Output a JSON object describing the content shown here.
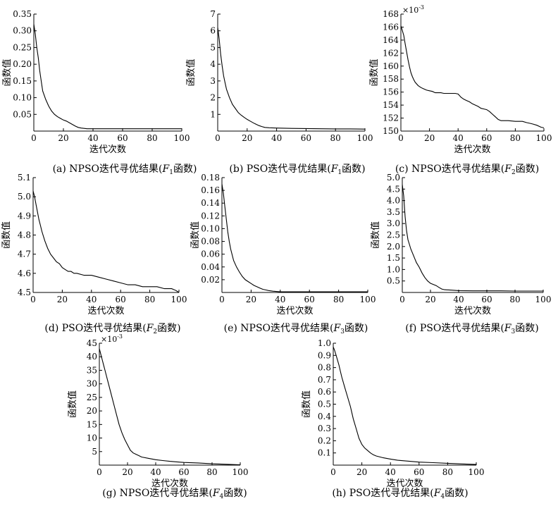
{
  "chart_data": [
    {
      "id": "a",
      "type": "line",
      "caption": {
        "pre": "(a) NPSO迭代寻优结果(",
        "F": "F",
        "sub": "1",
        "post": "函数)"
      },
      "xlabel": "迭代次数",
      "ylabel": "函数值",
      "exponent": "",
      "xlim": [
        0,
        100
      ],
      "ylim": [
        0,
        0.35
      ],
      "xticks": [
        "0",
        "20",
        "40",
        "60",
        "80",
        "100"
      ],
      "yticks": [
        {
          "v": 0.05,
          "l": "0.05"
        },
        {
          "v": 0.1,
          "l": "0.10"
        },
        {
          "v": 0.15,
          "l": "0.15"
        },
        {
          "v": 0.2,
          "l": "0.20"
        },
        {
          "v": 0.25,
          "l": "0.25"
        },
        {
          "v": 0.3,
          "l": "0.30"
        },
        {
          "v": 0.35,
          "l": "0.35"
        }
      ],
      "x": [
        0,
        1,
        2,
        3,
        4,
        5,
        6,
        8,
        10,
        12,
        14,
        16,
        18,
        20,
        22,
        24,
        26,
        28,
        30,
        32,
        34,
        36,
        40,
        50,
        60,
        70,
        80,
        90,
        100
      ],
      "y": [
        0.32,
        0.29,
        0.25,
        0.22,
        0.18,
        0.15,
        0.12,
        0.095,
        0.075,
        0.06,
        0.05,
        0.043,
        0.038,
        0.033,
        0.03,
        0.025,
        0.02,
        0.015,
        0.011,
        0.009,
        0.008,
        0.007,
        0.007,
        0.007,
        0.007,
        0.007,
        0.007,
        0.007,
        0.007
      ]
    },
    {
      "id": "b",
      "type": "line",
      "caption": {
        "pre": "(b) PSO迭代寻优结果(",
        "F": "F",
        "sub": "1",
        "post": "函数)"
      },
      "xlabel": "",
      "ylabel": "函数值",
      "exponent": "",
      "xlim": [
        0,
        100
      ],
      "ylim": [
        0,
        7
      ],
      "xticks": [
        "0",
        "20",
        "40",
        "60",
        "80",
        "100"
      ],
      "yticks": [
        {
          "v": 1,
          "l": "1"
        },
        {
          "v": 2,
          "l": "2"
        },
        {
          "v": 3,
          "l": "3"
        },
        {
          "v": 4,
          "l": "4"
        },
        {
          "v": 5,
          "l": "5"
        },
        {
          "v": 6,
          "l": "6"
        },
        {
          "v": 7,
          "l": "7"
        }
      ],
      "x": [
        0,
        1,
        2,
        3,
        4,
        5,
        6,
        8,
        10,
        12,
        14,
        16,
        18,
        20,
        22,
        25,
        28,
        30,
        32,
        35,
        40,
        50,
        60,
        70,
        80,
        90,
        100
      ],
      "y": [
        6.2,
        5.5,
        4.6,
        3.9,
        3.3,
        2.9,
        2.5,
        2.0,
        1.6,
        1.35,
        1.1,
        0.95,
        0.82,
        0.7,
        0.6,
        0.45,
        0.33,
        0.27,
        0.22,
        0.2,
        0.18,
        0.16,
        0.15,
        0.14,
        0.13,
        0.13,
        0.12
      ]
    },
    {
      "id": "c",
      "type": "line",
      "caption": {
        "pre": "(c) NPSO迭代寻优结果(",
        "F": "F",
        "sub": "2",
        "post": "函数)"
      },
      "xlabel": "迭代次数",
      "ylabel": "函数值",
      "exponent": "-3",
      "xlim": [
        0,
        100
      ],
      "ylim": [
        150,
        168
      ],
      "xticks": [
        "0",
        "20",
        "40",
        "60",
        "80",
        "100"
      ],
      "yticks": [
        {
          "v": 150,
          "l": "150"
        },
        {
          "v": 152,
          "l": "152"
        },
        {
          "v": 154,
          "l": "154"
        },
        {
          "v": 156,
          "l": "156"
        },
        {
          "v": 158,
          "l": "158"
        },
        {
          "v": 160,
          "l": "160"
        },
        {
          "v": 162,
          "l": "162"
        },
        {
          "v": 164,
          "l": "164"
        },
        {
          "v": 166,
          "l": "166"
        },
        {
          "v": 168,
          "l": "168"
        }
      ],
      "x": [
        0,
        1,
        2,
        3,
        4,
        5,
        6,
        7,
        8,
        9,
        10,
        12,
        14,
        16,
        18,
        20,
        22,
        24,
        26,
        28,
        30,
        35,
        38,
        40,
        42,
        44,
        46,
        48,
        50,
        52,
        54,
        56,
        58,
        60,
        62,
        64,
        66,
        68,
        70,
        75,
        80,
        85,
        88,
        90,
        92,
        95,
        98,
        100
      ],
      "y": [
        166.2,
        165.5,
        164.7,
        163.4,
        162.2,
        161.0,
        159.9,
        159.0,
        158.4,
        157.9,
        157.5,
        157.0,
        156.7,
        156.5,
        156.3,
        156.2,
        156.1,
        155.9,
        155.9,
        155.9,
        155.8,
        155.8,
        155.8,
        155.7,
        155.2,
        154.9,
        154.7,
        154.5,
        154.2,
        154.0,
        153.8,
        153.5,
        153.4,
        153.3,
        153.0,
        152.6,
        152.2,
        151.8,
        151.6,
        151.6,
        151.5,
        151.5,
        151.3,
        151.2,
        151.1,
        150.9,
        150.6,
        150.5
      ]
    },
    {
      "id": "d",
      "type": "line",
      "caption": {
        "pre": "(d) PSO迭代寻优结果(",
        "F": "F",
        "sub": "2",
        "post": "函数)"
      },
      "xlabel": "迭代次数",
      "ylabel": "函数值",
      "exponent": "",
      "xlim": [
        0,
        100
      ],
      "ylim": [
        4.5,
        5.1
      ],
      "xticks": [
        "0",
        "20",
        "40",
        "60",
        "80",
        "100"
      ],
      "yticks": [
        {
          "v": 4.5,
          "l": "4.5"
        },
        {
          "v": 4.6,
          "l": "4.6"
        },
        {
          "v": 4.7,
          "l": "4.7"
        },
        {
          "v": 4.8,
          "l": "4.8"
        },
        {
          "v": 4.9,
          "l": "4.9"
        },
        {
          "v": 5.0,
          "l": "5.0"
        },
        {
          "v": 5.1,
          "l": "5.1"
        }
      ],
      "x": [
        0,
        1,
        2,
        3,
        4,
        5,
        6,
        8,
        10,
        12,
        14,
        16,
        18,
        20,
        22,
        24,
        26,
        28,
        30,
        35,
        40,
        45,
        50,
        55,
        60,
        65,
        70,
        75,
        80,
        85,
        90,
        95,
        98,
        100
      ],
      "y": [
        5.03,
        5.0,
        4.96,
        4.92,
        4.88,
        4.85,
        4.82,
        4.77,
        4.73,
        4.7,
        4.68,
        4.66,
        4.65,
        4.63,
        4.62,
        4.61,
        4.61,
        4.6,
        4.6,
        4.59,
        4.59,
        4.58,
        4.57,
        4.56,
        4.55,
        4.54,
        4.54,
        4.53,
        4.53,
        4.53,
        4.52,
        4.52,
        4.51,
        4.5
      ]
    },
    {
      "id": "e",
      "type": "line",
      "caption": {
        "pre": "(e) NPSO迭代寻优结果(",
        "F": "F",
        "sub": "3",
        "post": "函数)"
      },
      "xlabel": "迭代次数",
      "ylabel": "函数值",
      "exponent": "",
      "xlim": [
        0,
        100
      ],
      "ylim": [
        0,
        0.18
      ],
      "xticks": [
        "0",
        "20",
        "40",
        "60",
        "80",
        "100"
      ],
      "yticks": [
        {
          "v": 0.02,
          "l": "0.02"
        },
        {
          "v": 0.04,
          "l": "0.04"
        },
        {
          "v": 0.06,
          "l": "0.06"
        },
        {
          "v": 0.08,
          "l": "0.08"
        },
        {
          "v": 0.1,
          "l": "0.10"
        },
        {
          "v": 0.12,
          "l": "0.12"
        },
        {
          "v": 0.14,
          "l": "0.14"
        },
        {
          "v": 0.16,
          "l": "0.16"
        },
        {
          "v": 0.18,
          "l": "0.18"
        }
      ],
      "x": [
        0,
        1,
        2,
        3,
        4,
        5,
        6,
        8,
        10,
        12,
        14,
        16,
        18,
        20,
        22,
        24,
        26,
        28,
        30,
        32,
        35,
        40,
        50,
        60,
        70,
        80,
        90,
        100
      ],
      "y": [
        0.17,
        0.155,
        0.135,
        0.115,
        0.095,
        0.08,
        0.068,
        0.05,
        0.04,
        0.032,
        0.025,
        0.02,
        0.017,
        0.014,
        0.011,
        0.009,
        0.007,
        0.005,
        0.004,
        0.003,
        0.002,
        0.001,
        0.001,
        0.001,
        0.001,
        0.001,
        0.001,
        0.001
      ]
    },
    {
      "id": "f",
      "type": "line",
      "caption": {
        "pre": "(f) PSO迭代寻优结果(",
        "F": "F",
        "sub": "3",
        "post": "函数)"
      },
      "xlabel": "迭代次数",
      "ylabel": "函数值",
      "exponent": "",
      "xlim": [
        0,
        100
      ],
      "ylim": [
        0,
        5.0
      ],
      "xticks": [
        "0",
        "20",
        "40",
        "60",
        "80",
        "100"
      ],
      "yticks": [
        {
          "v": 0.5,
          "l": "0.5"
        },
        {
          "v": 1.0,
          "l": "1.0"
        },
        {
          "v": 1.5,
          "l": "1.5"
        },
        {
          "v": 2.0,
          "l": "2.0"
        },
        {
          "v": 2.5,
          "l": "2.5"
        },
        {
          "v": 3.0,
          "l": "3.0"
        },
        {
          "v": 3.5,
          "l": "3.5"
        },
        {
          "v": 4.0,
          "l": "4.0"
        },
        {
          "v": 4.5,
          "l": "4.5"
        },
        {
          "v": 5.0,
          "l": "5.0"
        }
      ],
      "x": [
        0,
        1,
        2,
        3,
        4,
        5,
        6,
        8,
        10,
        12,
        14,
        16,
        18,
        20,
        22,
        24,
        26,
        28,
        30,
        35,
        40,
        50,
        60,
        70,
        80,
        90,
        100
      ],
      "y": [
        4.7,
        4.2,
        3.3,
        2.7,
        2.3,
        2.1,
        1.9,
        1.6,
        1.3,
        1.1,
        0.85,
        0.65,
        0.5,
        0.4,
        0.35,
        0.3,
        0.22,
        0.15,
        0.12,
        0.1,
        0.08,
        0.07,
        0.07,
        0.07,
        0.06,
        0.06,
        0.06
      ]
    },
    {
      "id": "g",
      "type": "line",
      "caption": {
        "pre": "(g) NPSO迭代寻优结果(",
        "F": "F",
        "sub": "4",
        "post": "函数)"
      },
      "xlabel": "迭代次数",
      "ylabel": "函数值",
      "exponent": "-3",
      "xlim": [
        0,
        100
      ],
      "ylim": [
        0,
        45
      ],
      "xticks": [
        "0",
        "20",
        "40",
        "60",
        "80",
        "100"
      ],
      "yticks": [
        {
          "v": 5,
          "l": "5"
        },
        {
          "v": 10,
          "l": "10"
        },
        {
          "v": 15,
          "l": "15"
        },
        {
          "v": 20,
          "l": "20"
        },
        {
          "v": 25,
          "l": "25"
        },
        {
          "v": 30,
          "l": "30"
        },
        {
          "v": 35,
          "l": "35"
        },
        {
          "v": 40,
          "l": "40"
        },
        {
          "v": 45,
          "l": "45"
        }
      ],
      "x": [
        0,
        1,
        2,
        3,
        4,
        5,
        6,
        8,
        10,
        12,
        14,
        16,
        18,
        20,
        22,
        24,
        26,
        28,
        30,
        35,
        40,
        45,
        50,
        55,
        60,
        70,
        80,
        90,
        100
      ],
      "y": [
        43,
        41,
        39,
        37,
        35,
        33,
        31,
        27,
        23,
        19,
        15,
        12,
        9.5,
        7.5,
        5.5,
        4.5,
        4,
        3.5,
        3,
        2.5,
        2,
        1.7,
        1.4,
        1.2,
        1,
        0.8,
        0.5,
        0.3,
        0.1
      ]
    },
    {
      "id": "h",
      "type": "line",
      "caption": {
        "pre": "(h) PSO迭代寻优结果(",
        "F": "F",
        "sub": "4",
        "post": "函数)"
      },
      "xlabel": "迭代次数",
      "ylabel": "函数值",
      "exponent": "",
      "xlim": [
        0,
        100
      ],
      "ylim": [
        0,
        1.0
      ],
      "xticks": [
        "0",
        "20",
        "40",
        "60",
        "80",
        "100"
      ],
      "yticks": [
        {
          "v": 0.1,
          "l": "0.1"
        },
        {
          "v": 0.2,
          "l": "0.2"
        },
        {
          "v": 0.3,
          "l": "0.3"
        },
        {
          "v": 0.4,
          "l": "0.4"
        },
        {
          "v": 0.5,
          "l": "0.5"
        },
        {
          "v": 0.6,
          "l": "0.6"
        },
        {
          "v": 0.7,
          "l": "0.7"
        },
        {
          "v": 0.8,
          "l": "0.8"
        },
        {
          "v": 0.9,
          "l": "0.9"
        },
        {
          "v": 1.0,
          "l": "1.0"
        }
      ],
      "x": [
        0,
        1,
        2,
        3,
        4,
        5,
        6,
        8,
        10,
        12,
        14,
        16,
        18,
        20,
        22,
        24,
        26,
        28,
        30,
        35,
        40,
        45,
        50,
        55,
        60,
        70,
        80,
        90,
        100
      ],
      "y": [
        0.97,
        0.94,
        0.9,
        0.86,
        0.82,
        0.77,
        0.72,
        0.64,
        0.56,
        0.48,
        0.38,
        0.3,
        0.22,
        0.17,
        0.14,
        0.12,
        0.1,
        0.085,
        0.075,
        0.06,
        0.05,
        0.04,
        0.035,
        0.03,
        0.025,
        0.02,
        0.015,
        0.01,
        0.005
      ]
    }
  ]
}
